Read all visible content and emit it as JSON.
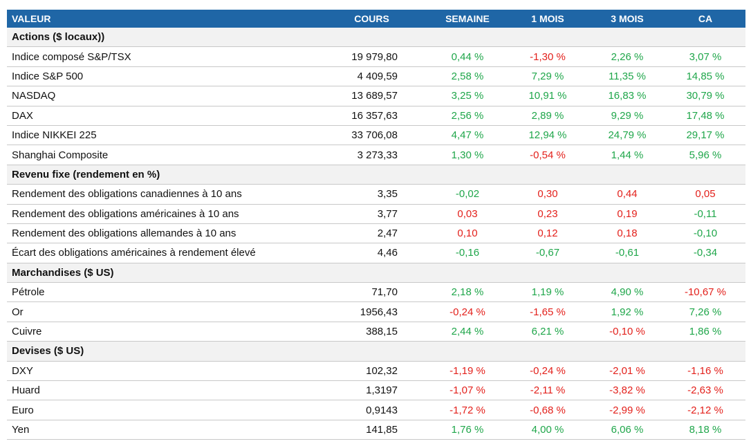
{
  "palette": {
    "green": "#1fa64a",
    "red": "#e3201b"
  },
  "header": [
    "VALEUR",
    "COURS",
    "SEMAINE",
    "1 MOIS",
    "3 MOIS",
    "CA"
  ],
  "sections": [
    {
      "title": "Actions ($ locaux))",
      "rows": [
        {
          "cells": [
            "Indice composé S&P/TSX",
            "19 979,80",
            "0,44 %",
            "-1,30 %",
            "2,26 %",
            "3,07 %"
          ],
          "colors": [
            "green",
            "red",
            "green",
            "green"
          ]
        },
        {
          "cells": [
            "Indice S&P 500",
            "4 409,59",
            "2,58 %",
            "7,29 %",
            "11,35 %",
            "14,85 %"
          ],
          "colors": [
            "green",
            "green",
            "green",
            "green"
          ]
        },
        {
          "cells": [
            "NASDAQ",
            "13 689,57",
            "3,25 %",
            "10,91 %",
            "16,83 %",
            "30,79 %"
          ],
          "colors": [
            "green",
            "green",
            "green",
            "green"
          ]
        },
        {
          "cells": [
            "DAX",
            "16 357,63",
            "2,56 %",
            "2,89 %",
            "9,29 %",
            "17,48 %"
          ],
          "colors": [
            "green",
            "green",
            "green",
            "green"
          ]
        },
        {
          "cells": [
            "Indice NIKKEI 225",
            "33 706,08",
            "4,47 %",
            "12,94 %",
            "24,79 %",
            "29,17 %"
          ],
          "colors": [
            "green",
            "green",
            "green",
            "green"
          ]
        },
        {
          "cells": [
            "Shanghai Composite",
            "3 273,33",
            "1,30 %",
            "-0,54 %",
            "1,44 %",
            "5,96 %"
          ],
          "colors": [
            "green",
            "red",
            "green",
            "green"
          ]
        }
      ]
    },
    {
      "title": "Revenu fixe (rendement en %)",
      "rows": [
        {
          "cells": [
            "Rendement des obligations canadiennes à 10 ans",
            "3,35",
            "-0,02",
            "0,30",
            "0,44",
            "0,05"
          ],
          "colors": [
            "green",
            "red",
            "red",
            "red"
          ]
        },
        {
          "cells": [
            "Rendement des obligations américaines à 10 ans",
            "3,77",
            "0,03",
            "0,23",
            "0,19",
            "-0,11"
          ],
          "colors": [
            "red",
            "red",
            "red",
            "green"
          ]
        },
        {
          "cells": [
            "Rendement des obligations allemandes à 10 ans",
            "2,47",
            "0,10",
            "0,12",
            "0,18",
            "-0,10"
          ],
          "colors": [
            "red",
            "red",
            "red",
            "green"
          ]
        },
        {
          "cells": [
            "Écart des obligations américaines à rendement élevé",
            "4,46",
            "-0,16",
            "-0,67",
            "-0,61",
            "-0,34"
          ],
          "colors": [
            "green",
            "green",
            "green",
            "green"
          ]
        }
      ]
    },
    {
      "title": "Marchandises ($ US)",
      "rows": [
        {
          "cells": [
            "Pétrole",
            "71,70",
            "2,18 %",
            "1,19 %",
            "4,90 %",
            "-10,67 %"
          ],
          "colors": [
            "green",
            "green",
            "green",
            "red"
          ]
        },
        {
          "cells": [
            "Or",
            "1956,43",
            "-0,24 %",
            "-1,65 %",
            "1,92 %",
            "7,26 %"
          ],
          "colors": [
            "red",
            "red",
            "green",
            "green"
          ]
        },
        {
          "cells": [
            "Cuivre",
            "388,15",
            "2,44 %",
            "6,21 %",
            "-0,10 %",
            "1,86 %"
          ],
          "colors": [
            "green",
            "green",
            "red",
            "green"
          ]
        }
      ]
    },
    {
      "title": "Devises ($ US)",
      "rows": [
        {
          "cells": [
            "DXY",
            "102,32",
            "-1,19 %",
            "-0,24 %",
            "-2,01 %",
            "-1,16 %"
          ],
          "colors": [
            "red",
            "red",
            "red",
            "red"
          ]
        },
        {
          "cells": [
            "Huard",
            "1,3197",
            "-1,07 %",
            "-2,11 %",
            "-3,82 %",
            "-2,63 %"
          ],
          "colors": [
            "red",
            "red",
            "red",
            "red"
          ]
        },
        {
          "cells": [
            "Euro",
            "0,9143",
            "-1,72 %",
            "-0,68 %",
            "-2,99 %",
            "-2,12 %"
          ],
          "colors": [
            "red",
            "red",
            "red",
            "red"
          ]
        },
        {
          "cells": [
            "Yen",
            "141,85",
            "1,76 %",
            "4,00 %",
            "6,06 %",
            "8,18 %"
          ],
          "colors": [
            "green",
            "green",
            "green",
            "green"
          ]
        }
      ]
    }
  ]
}
